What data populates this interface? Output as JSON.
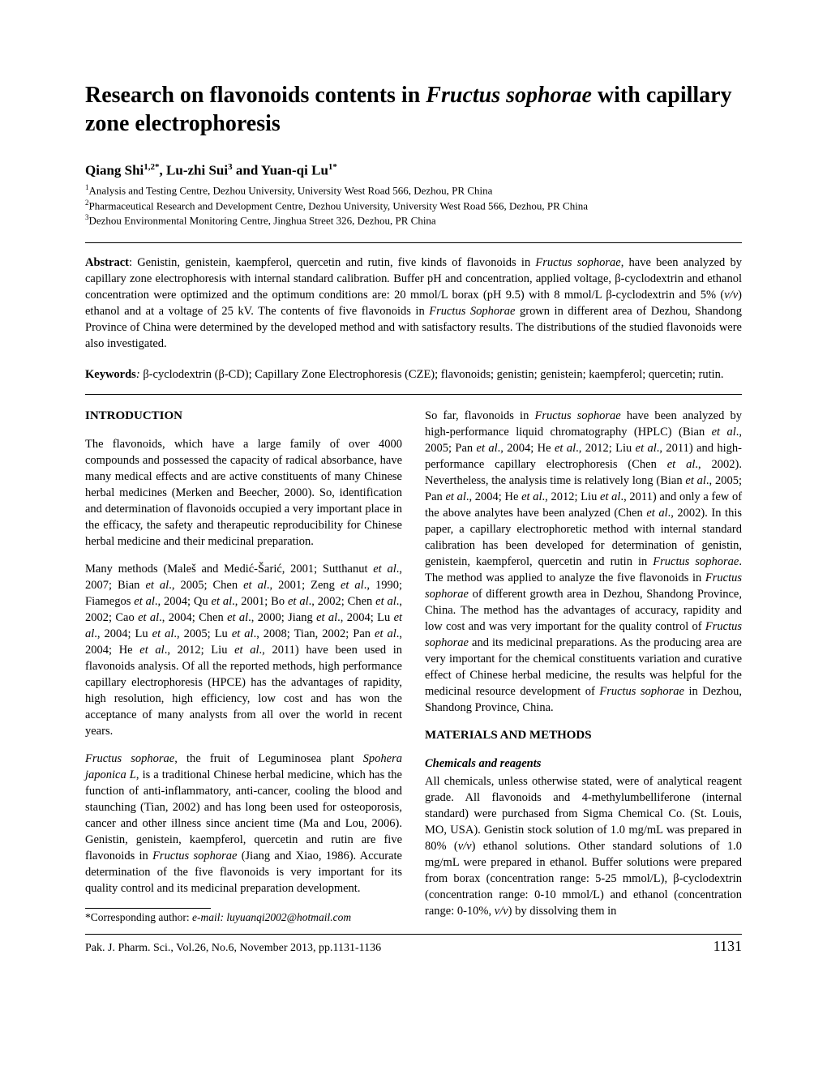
{
  "title": {
    "part1": "Research on flavonoids contents in ",
    "italic": "Fructus sophorae",
    "part2": " with capillary zone electrophoresis"
  },
  "authors": {
    "name1": "Qiang Shi",
    "sup1": "1,2*",
    "sep1": ", ",
    "name2": "Lu-zhi Sui",
    "sup2": "3",
    "sep2": " and ",
    "name3": "Yuan-qi Lu",
    "sup3": "1*"
  },
  "affiliations": {
    "a1_sup": "1",
    "a1": "Analysis and Testing Centre, Dezhou University, University West Road 566, Dezhou, PR China",
    "a2_sup": "2",
    "a2": "Pharmaceutical Research and Development Centre, Dezhou University, University West Road 566, Dezhou, PR China",
    "a3_sup": "3",
    "a3": "Dezhou Environmental Monitoring Centre, Jinghua Street 326, Dezhou, PR China"
  },
  "abstract": {
    "label": "Abstract",
    "t1": ": Genistin, genistein, kaempferol, quercetin and rutin, five kinds of flavonoids in ",
    "i1": "Fructus sophorae",
    "t2": ", have been analyzed by capillary zone electrophoresis with internal standard calibration",
    "i2": ".",
    "t3": " Buffer pH and concentration, applied voltage, β-cyclodextrin and ethanol concentration were optimized and the optimum conditions are: 20 mmol/L borax (pH 9.5) with 8 mmol/L β-cyclodextrin and 5% (",
    "i3": "v/v",
    "t4": ") ethanol and at a voltage of 25 kV. The contents of five flavonoids in ",
    "i4": "Fructus Sophorae",
    "t5": " grown in different area of Dezhou, Shandong Province of China were determined by the developed method and with satisfactory results. The distributions of the studied flavonoids were also investigated."
  },
  "keywords": {
    "label": "Keywords",
    "sep": ": ",
    "text": "β-cyclodextrin (β-CD); Capillary Zone Electrophoresis (CZE); flavonoids; genistin; genistein; kaempferol; quercetin; rutin."
  },
  "col1": {
    "heading1": "INTRODUCTION",
    "p1": "The flavonoids, which have a large family of over 4000 compounds and possessed the capacity of radical absorbance, have many medical effects and are active constituents of many Chinese herbal medicines (Merken and Beecher, 2000). So, identification and determination of flavonoids occupied a very important place in the efficacy, the safety and therapeutic reproducibility for Chinese herbal medicine and their medicinal preparation.",
    "p2_t1": "Many methods (Maleš and Medić-Šarić, 2001; Sutthanut ",
    "p2_i1": "et al",
    "p2_t2": "., 2007; Bian ",
    "p2_i2": "et al",
    "p2_t3": "., 2005; Chen ",
    "p2_i3": "et al",
    "p2_t4": "., 2001; Zeng ",
    "p2_i4": "et al",
    "p2_t5": "., 1990; Fiamegos ",
    "p2_i5": "et al",
    "p2_t6": "., 2004; Qu ",
    "p2_i6": "et al",
    "p2_t7": "., 2001; Bo ",
    "p2_i7": "et al",
    "p2_t8": "., 2002; Chen ",
    "p2_i8": "et al",
    "p2_t9": "., 2002; Cao ",
    "p2_i9": "et al",
    "p2_t10": "., 2004; Chen ",
    "p2_i10": "et al",
    "p2_t11": "., 2000; Jiang ",
    "p2_i11": "et al",
    "p2_t12": "., 2004; Lu ",
    "p2_i12": "et al",
    "p2_t13": "., 2004; Lu ",
    "p2_i13": "et al",
    "p2_t14": "., 2005; Lu ",
    "p2_i14": "et al",
    "p2_t15": "., 2008; Tian, 2002; Pan ",
    "p2_i15": "et al",
    "p2_t16": "., 2004; He ",
    "p2_i16": "et al",
    "p2_t17": "., 2012; Liu ",
    "p2_i17": "et al",
    "p2_t18": "., 2011) have been used in flavonoids analysis. Of all the reported methods, high performance capillary electrophoresis (HPCE) has the advantages of rapidity, high resolution, high efficiency, low cost and has won the acceptance of many analysts from all over the world in recent years.",
    "p3_i1": "Fructus sophorae",
    "p3_t1": ", the fruit of Leguminosea plant ",
    "p3_i2": "Spohera japonica L",
    "p3_t2": ", is a traditional Chinese herbal medicine, which has the function of anti-inflammatory, anti-cancer, cooling the blood and staunching (Tian, 2002) and has long been used for osteoporosis, cancer and other illness since ancient time (Ma and Lou, 2006). Genistin, genistein, kaempferol, quercetin and rutin are five flavonoids in ",
    "p3_i3": "Fructus sophorae",
    "p3_t3": " (Jiang and Xiao, 1986). Accurate determination of the five flavonoids is very important for its quality control and its medicinal preparation development.",
    "corr_label": "*Corresponding author:",
    "corr_text": " e-mail: luyuanqi2002@hotmail.com"
  },
  "col2": {
    "p1_t1": "So far, flavonoids in ",
    "p1_i1": "Fructus sophorae",
    "p1_t2": " have been analyzed by high-performance liquid chromatography (HPLC) (Bian ",
    "p1_i2": "et al",
    "p1_t3": "., 2005; Pan ",
    "p1_i3": "et al",
    "p1_t4": "., 2004; He ",
    "p1_i4": "et al",
    "p1_t5": "., 2012; Liu ",
    "p1_i5": "et al",
    "p1_t6": "., 2011) and high-performance capillary electrophoresis (Chen ",
    "p1_i6": "et al",
    "p1_t7": "., 2002). Nevertheless, the analysis time is relatively long (Bian ",
    "p1_i7": "et al",
    "p1_t8": "., 2005; Pan ",
    "p1_i8": "et al",
    "p1_t9": "., 2004; He ",
    "p1_i9": "et al",
    "p1_t10": "., 2012; Liu ",
    "p1_i10": "et al",
    "p1_t11": "., 2011) and only a few of the above analytes have been analyzed (Chen ",
    "p1_i11": "et al",
    "p1_t12": "., 2002). In this paper, a capillary electrophoretic method with internal standard calibration has been developed for determination of genistin, genistein, kaempferol, quercetin and rutin in ",
    "p1_i12": "Fructus sophorae",
    "p1_t13": ". The method was applied to analyze the five flavonoids in ",
    "p1_i13": "Fructus sophorae",
    "p1_t14": " of different growth area in Dezhou, Shandong Province, China. The method has the advantages of accuracy, rapidity and low cost and was very important for the quality control of ",
    "p1_i14": "Fructus sophorae",
    "p1_t15": " and its medicinal preparations. As the producing area are very important for the chemical constituents variation and curative effect of Chinese herbal medicine, the results was helpful for the medicinal resource development of ",
    "p1_i15": "Fructus sophorae",
    "p1_t16": " in Dezhou, Shandong Province, China.",
    "heading2": "MATERIALS AND METHODS",
    "sub1": "Chemicals and reagents",
    "p2_t1": "All chemicals, unless otherwise stated, were of analytical reagent grade. All flavonoids and 4-methylumbelliferone (internal standard) were purchased from Sigma Chemical Co. (St. Louis, MO, USA). Genistin stock solution of 1.0 mg/mL was prepared in 80% (",
    "p2_i1": "v/v",
    "p2_t2": ") ethanol solutions. Other standard solutions of 1.0 mg/mL  were prepared in ethanol. Buffer solutions were prepared from borax (concentration range: 5-25 mmol/L), β-cyclodextrin (concentration range: 0-10 mmol/L) and ethanol (concentration range: 0-10%, ",
    "p2_i2": "v/v",
    "p2_t3": ") by dissolving them in"
  },
  "footer": {
    "journal": "Pak. J. Pharm. Sci., Vol.26, No.6, November 2013, pp.1131-1136",
    "page": "1131"
  }
}
